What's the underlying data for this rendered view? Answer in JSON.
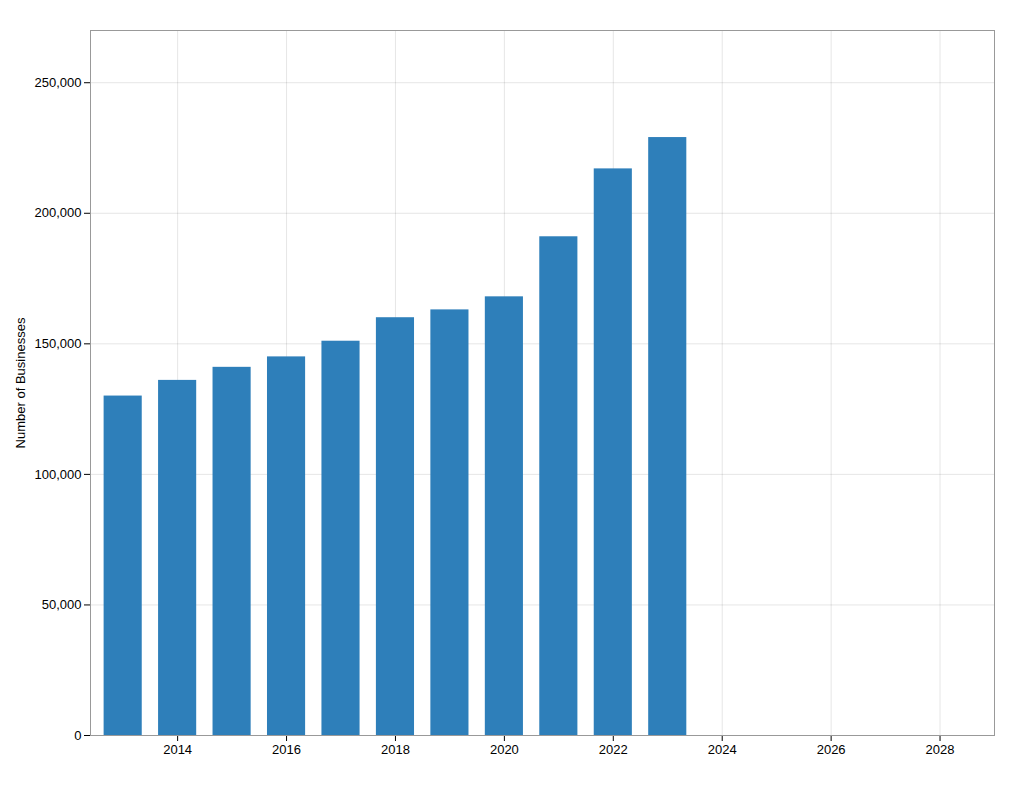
{
  "chart_data": {
    "type": "bar",
    "x": [
      2013,
      2014,
      2015,
      2016,
      2017,
      2018,
      2019,
      2020,
      2021,
      2022,
      2023
    ],
    "values": [
      130000,
      136000,
      141000,
      145000,
      151000,
      160000,
      163000,
      168000,
      191000,
      217000,
      229000
    ],
    "color": "#2e7fba",
    "ylabel": "Number of Businesses",
    "xlim": [
      2012.4,
      2029.0
    ],
    "xticks": [
      2014,
      2016,
      2018,
      2020,
      2022,
      2024,
      2026,
      2028
    ],
    "ylim": [
      0,
      270000
    ],
    "yticks": [
      0,
      {
        "value": 50000,
        "label": "50,000"
      },
      {
        "value": 100000,
        "label": "100,000"
      },
      {
        "value": 150000,
        "label": "150,000"
      },
      {
        "value": 200000,
        "label": "200,000"
      },
      {
        "value": 250000,
        "label": "250,000"
      }
    ],
    "grid": true
  }
}
